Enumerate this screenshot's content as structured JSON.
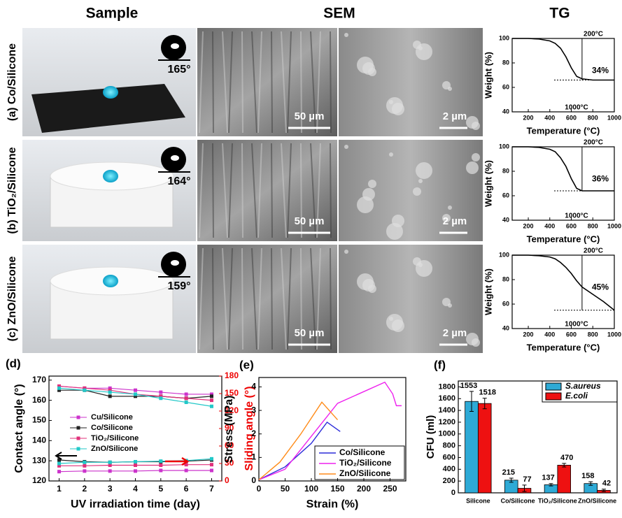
{
  "figure": {
    "headers": [
      "Sample",
      "SEM",
      "TG"
    ],
    "rows": [
      {
        "label": "(a) Co/Silicone",
        "angle": "165°",
        "scale_big": "50 µm",
        "scale_small": "2 µm"
      },
      {
        "label": "(b) TiO₂/Silicone",
        "angle": "164°",
        "scale_big": "50 µm",
        "scale_small": "2 µm"
      },
      {
        "label": "(c) ZnO/Silicone",
        "angle": "159°",
        "scale_big": "50 µm",
        "scale_small": "2 µm"
      }
    ],
    "panel_labels": [
      "(d)",
      "(e)",
      "(f)"
    ]
  },
  "chart_data": [
    {
      "type": "line",
      "xlabel": "Temperature (°C)",
      "ylabel": "Weight (%)",
      "xlim": [
        50,
        1000
      ],
      "ylim": [
        40,
        100
      ],
      "xticks": [
        200,
        400,
        600,
        800,
        1000
      ],
      "yticks": [
        40,
        60,
        80,
        100
      ],
      "x": [
        50,
        100,
        200,
        300,
        400,
        450,
        500,
        550,
        600,
        650,
        700,
        800,
        900,
        1000
      ],
      "series": [
        {
          "name": "Co/Silicone",
          "color": "#000000",
          "values": [
            100,
            100,
            100,
            99.5,
            98,
            96,
            92,
            85,
            76,
            69,
            67,
            66,
            66,
            66
          ]
        }
      ],
      "top_label": "200°C",
      "bottom_label": "1000°C",
      "drop_label": "34%"
    },
    {
      "type": "line",
      "xlabel": "Temperature (°C)",
      "ylabel": "Weight (%)",
      "xlim": [
        50,
        1000
      ],
      "ylim": [
        40,
        100
      ],
      "xticks": [
        200,
        400,
        600,
        800,
        1000
      ],
      "yticks": [
        40,
        60,
        80,
        100
      ],
      "x": [
        50,
        100,
        200,
        300,
        400,
        450,
        500,
        550,
        600,
        650,
        700,
        800,
        900,
        1000
      ],
      "series": [
        {
          "name": "TiO₂/Silicone",
          "color": "#000000",
          "values": [
            100,
            100,
            100,
            99.5,
            98,
            96,
            91,
            84,
            74,
            66,
            64,
            64,
            64,
            64
          ]
        }
      ],
      "top_label": "200°C",
      "bottom_label": "1000°C",
      "drop_label": "36%"
    },
    {
      "type": "line",
      "xlabel": "Temperature (°C)",
      "ylabel": "Weight (%)",
      "xlim": [
        50,
        1000
      ],
      "ylim": [
        40,
        100
      ],
      "xticks": [
        200,
        400,
        600,
        800,
        1000
      ],
      "yticks": [
        40,
        60,
        80,
        100
      ],
      "x": [
        50,
        100,
        200,
        300,
        400,
        450,
        500,
        550,
        600,
        650,
        700,
        800,
        900,
        1000
      ],
      "series": [
        {
          "name": "ZnO/Silicone",
          "color": "#000000",
          "values": [
            100,
            100,
            100,
            99.5,
            98.5,
            97,
            94,
            90,
            85,
            79,
            74,
            68,
            62,
            55
          ]
        }
      ],
      "top_label": "200°C",
      "bottom_label": "1000°C",
      "drop_label": "45%"
    },
    {
      "type": "dual",
      "xlabel": "UV irradiation time (day)",
      "ylabel": "Contact angle (°)",
      "y2label": "Sliding angle (°)",
      "xlim": [
        0.6,
        7.4
      ],
      "ylim": [
        120,
        172
      ],
      "y2lim": [
        0,
        180
      ],
      "xticks": [
        1,
        2,
        3,
        4,
        5,
        6,
        7
      ],
      "yticks": [
        120,
        130,
        140,
        150,
        160,
        170
      ],
      "y2ticks": [
        0,
        30,
        60,
        90,
        120,
        150,
        180
      ],
      "x": [
        1,
        2,
        3,
        4,
        5,
        6,
        7
      ],
      "series": [
        {
          "name": "Cu/Silicone",
          "color": "#cc33cc",
          "values": [
            167,
            166,
            166,
            165,
            164,
            163,
            163
          ]
        },
        {
          "name": "Co/Silicone",
          "color": "#222222",
          "values": [
            165,
            165,
            162,
            162,
            162,
            161,
            162
          ]
        },
        {
          "name": "TiO₂/Silicone",
          "color": "#e0307a",
          "values": [
            167,
            166,
            165,
            163,
            162,
            161,
            160
          ]
        },
        {
          "name": "ZnO/Silicone",
          "color": "#22c8c8",
          "values": [
            166,
            165,
            164,
            163,
            161,
            159,
            157
          ]
        },
        {
          "name": "Cu/Silicone",
          "color": "#cc33cc",
          "axis": "y2",
          "values": [
            16,
            17,
            17,
            17,
            18,
            18,
            18
          ]
        },
        {
          "name": "Co/Silicone",
          "color": "#222222",
          "axis": "y2",
          "values": [
            36,
            33,
            32,
            33,
            33,
            34,
            36
          ]
        },
        {
          "name": "TiO₂/Silicone",
          "color": "#e0307a",
          "axis": "y2",
          "values": [
            26,
            26,
            27,
            27,
            27,
            28,
            28
          ]
        },
        {
          "name": "ZnO/Silicone",
          "color": "#22c8c8",
          "axis": "y2",
          "values": [
            30,
            32,
            32,
            33,
            34,
            35,
            38
          ]
        }
      ]
    },
    {
      "type": "xy",
      "xlabel": "Strain (%)",
      "ylabel": "Stress (MPa)",
      "xlim": [
        0,
        280
      ],
      "ylim": [
        0,
        4.4
      ],
      "xticks": [
        0,
        50,
        100,
        150,
        200,
        250
      ],
      "yticks": [
        0,
        1,
        2,
        3,
        4
      ],
      "series": [
        {
          "name": "Co/Silicone",
          "color": "#2b2bd9",
          "x": [
            0,
            50,
            100,
            130,
            155
          ],
          "values": [
            0.05,
            0.6,
            1.6,
            2.5,
            2.1
          ]
        },
        {
          "name": "TiO₂/Silicone",
          "color": "#ee22ee",
          "x": [
            0,
            50,
            100,
            150,
            200,
            240,
            255,
            262,
            272
          ],
          "values": [
            0.05,
            0.5,
            1.9,
            3.3,
            3.8,
            4.2,
            3.7,
            3.2,
            3.2
          ]
        },
        {
          "name": "ZnO/Silicone",
          "color": "#ff8c1a",
          "x": [
            0,
            40,
            80,
            120,
            150
          ],
          "values": [
            0.05,
            0.8,
            2,
            3.35,
            2.6
          ]
        }
      ]
    },
    {
      "type": "bar",
      "ylabel": "CFU (ml)",
      "ylim": [
        0,
        1900
      ],
      "yticks": [
        0,
        200,
        400,
        600,
        800,
        1000,
        1200,
        1400,
        1600,
        1800
      ],
      "categories": [
        "Silicone",
        "Co/Silicone",
        "TiO₂/Silicone",
        "ZnO/Silicone"
      ],
      "series": [
        {
          "name": "S.aureus",
          "color": "#2eaad6",
          "values": [
            1553,
            215,
            137,
            158
          ],
          "errors": [
            170,
            35,
            20,
            30
          ]
        },
        {
          "name": "E.coli",
          "color": "#ee1111",
          "values": [
            1518,
            77,
            470,
            42
          ],
          "errors": [
            90,
            55,
            30,
            20
          ]
        }
      ]
    }
  ]
}
